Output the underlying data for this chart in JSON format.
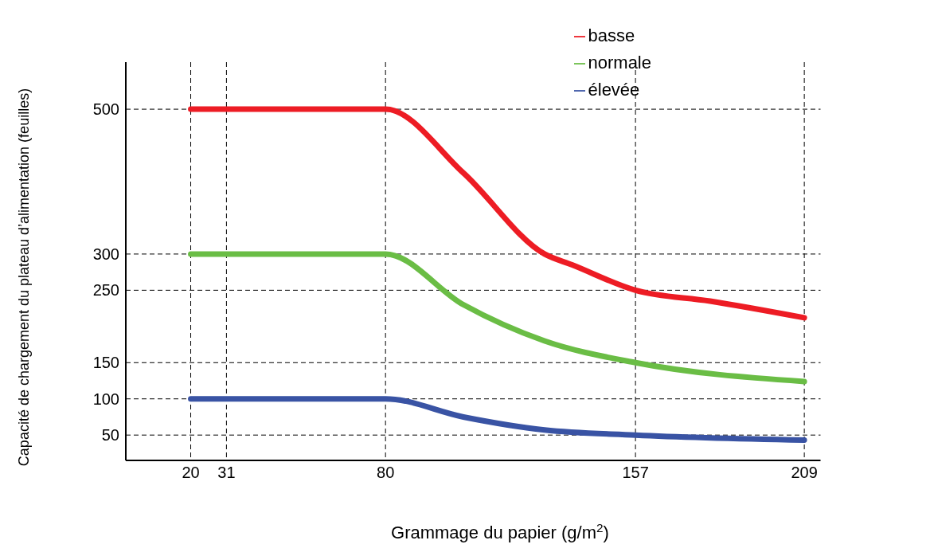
{
  "chart_data": {
    "type": "line",
    "xlabel": "Grammage du papier (g/m$^{2}$)",
    "ylabel": "Capacité de chargement du plateau d’alimentation (feuilles)",
    "xlim": [
      0,
      214
    ],
    "xticks": [
      20,
      31,
      80,
      157,
      209
    ],
    "ylim": [
      15,
      565
    ],
    "yticks": [
      50,
      100,
      150,
      250,
      300,
      500
    ],
    "grid": true,
    "legend": "top right",
    "marker": "none",
    "series": [
      {
        "name": "basse",
        "color": "#ed1c24",
        "x": [
          20,
          80,
          104,
          129,
          137.5,
          157,
          180,
          209
        ],
        "values": [
          500,
          500,
          412,
          300,
          285,
          250,
          235,
          212
        ]
      },
      {
        "name": "normale",
        "color": "#6abd45",
        "x": [
          20,
          80,
          104,
          129,
          157,
          209
        ],
        "values": [
          300,
          300,
          230,
          180,
          150,
          124
        ]
      },
      {
        "name": "élevée",
        "color": "#3953a4",
        "x": [
          20,
          80,
          104,
          129,
          157,
          209
        ],
        "values": [
          100,
          100,
          75,
          57,
          50,
          43
        ]
      }
    ]
  }
}
